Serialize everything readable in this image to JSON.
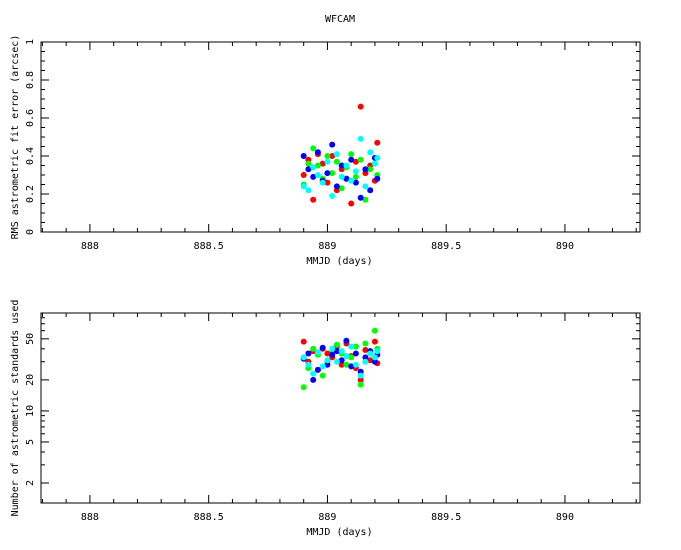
{
  "chart_data": [
    {
      "type": "scatter",
      "title": "WFCAM",
      "xlabel": "MMJD (days)",
      "ylabel": "RMS astrometric fit error (arcsec)",
      "xlim": [
        887.794,
        890.316
      ],
      "ylim": [
        0,
        1
      ],
      "yscale": "linear",
      "xticks": [
        888,
        888.5,
        889,
        889.5,
        890
      ],
      "xtick_labels": [
        "888",
        "888.5",
        "889",
        "889.5",
        "890"
      ],
      "yticks": [
        0,
        0.2,
        0.4,
        0.6,
        0.8,
        1
      ],
      "ytick_labels": [
        "0",
        "0.2",
        "0.4",
        "0.6",
        "0.8",
        "1"
      ],
      "x": [
        888.9,
        888.92,
        888.94,
        888.96,
        888.98,
        889.0,
        889.02,
        889.04,
        889.06,
        889.08,
        889.1,
        889.12,
        889.14,
        889.16,
        889.18,
        889.2,
        889.21
      ],
      "series": [
        {
          "name": "red",
          "color": "#ff0000",
          "values": [
            0.3,
            0.38,
            0.17,
            0.41,
            0.36,
            0.26,
            0.4,
            0.22,
            0.33,
            0.28,
            0.15,
            0.37,
            0.66,
            0.31,
            0.35,
            0.27,
            0.47
          ]
        },
        {
          "name": "green",
          "color": "#00ff00",
          "values": [
            0.25,
            0.36,
            0.44,
            0.35,
            0.28,
            0.4,
            0.31,
            0.37,
            0.23,
            0.34,
            0.41,
            0.29,
            0.38,
            0.17,
            0.33,
            0.36,
            0.3
          ]
        },
        {
          "name": "blue",
          "color": "#0000ff",
          "values": [
            0.4,
            0.33,
            0.29,
            0.42,
            0.27,
            0.31,
            0.46,
            0.24,
            0.35,
            0.28,
            0.38,
            0.26,
            0.18,
            0.33,
            0.22,
            0.39,
            0.28
          ]
        },
        {
          "name": "cyan",
          "color": "#00ffff",
          "values": [
            0.24,
            0.22,
            0.34,
            0.3,
            0.26,
            0.37,
            0.19,
            0.41,
            0.29,
            0.35,
            0.27,
            0.32,
            0.49,
            0.24,
            0.42,
            0.36,
            0.39
          ]
        }
      ]
    },
    {
      "type": "scatter",
      "xlabel": "MMJD (days)",
      "ylabel": "Number of astrometric standards used",
      "xlim": [
        887.794,
        890.316
      ],
      "ylim": [
        1.28,
        89
      ],
      "yscale": "log",
      "xticks": [
        888,
        888.5,
        889,
        889.5,
        890
      ],
      "xtick_labels": [
        "888",
        "888.5",
        "889",
        "889.5",
        "890"
      ],
      "yticks": [
        2,
        5,
        10,
        20,
        50
      ],
      "ytick_labels": [
        "2",
        "5",
        "10",
        "20",
        "50"
      ],
      "x": [
        888.9,
        888.92,
        888.94,
        888.96,
        888.98,
        889.0,
        889.02,
        889.04,
        889.06,
        889.08,
        889.1,
        889.12,
        889.14,
        889.16,
        889.18,
        889.2,
        889.21
      ],
      "series": [
        {
          "name": "red",
          "color": "#ff0000",
          "values": [
            47,
            30,
            38,
            25,
            40,
            36,
            33,
            42,
            28,
            45,
            34,
            26,
            20,
            39,
            31,
            47,
            29
          ]
        },
        {
          "name": "green",
          "color": "#00ff00",
          "values": [
            17,
            26,
            40,
            35,
            22,
            30,
            38,
            44,
            36,
            28,
            33,
            42,
            18,
            45,
            38,
            60,
            40
          ]
        },
        {
          "name": "blue",
          "color": "#0000ff",
          "values": [
            32,
            36,
            20,
            25,
            41,
            28,
            35,
            38,
            31,
            48,
            27,
            36,
            24,
            33,
            38,
            30,
            35
          ]
        },
        {
          "name": "cyan",
          "color": "#00ffff",
          "values": [
            33,
            28,
            23,
            37,
            27,
            31,
            40,
            30,
            38,
            34,
            42,
            28,
            22,
            30,
            36,
            33,
            38
          ]
        }
      ]
    }
  ]
}
